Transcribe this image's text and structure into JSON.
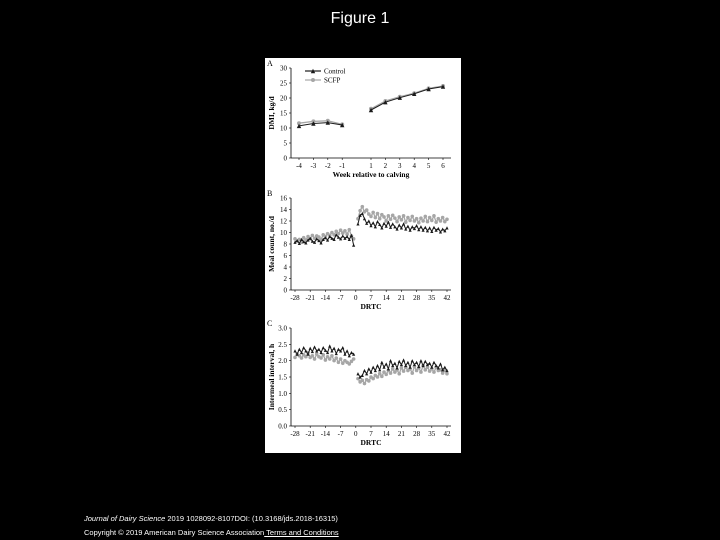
{
  "slide": {
    "title": "Figure 1",
    "citation_journal": "Journal of Dairy Science",
    "citation_rest": " 2019 1028092-8107DOI: (10.3168/jds.2018-16315)",
    "copyright_text": "Copyright © 2019 American Dairy Science Association",
    "copyright_link": " Terms and Conditions"
  },
  "colors": {
    "control": "#1a1a1a",
    "scfp": "#a6a6a6",
    "background": "#000000",
    "panel": "#ffffff"
  },
  "chart_data": [
    {
      "type": "line",
      "panel_letter": "A",
      "xlabel": "Week relative to calving",
      "ylabel": "DMI, kg/d",
      "ylim": [
        0,
        30
      ],
      "yticks": [
        0,
        5,
        10,
        15,
        20,
        25,
        30
      ],
      "xticks": [
        -4,
        -3,
        -2,
        -1,
        1,
        2,
        3,
        4,
        5,
        6
      ],
      "legend": [
        "Control",
        "SCFP"
      ],
      "legend_position": "top-right",
      "segments": [
        {
          "x": [
            -4,
            -3,
            -2,
            -1
          ],
          "series": [
            {
              "name": "Control",
              "values": [
                10.7,
                11.5,
                11.8,
                11.0
              ]
            },
            {
              "name": "SCFP",
              "values": [
                11.6,
                12.2,
                12.4,
                11.2
              ]
            }
          ]
        },
        {
          "x": [
            1,
            2,
            3,
            4,
            5,
            6
          ],
          "series": [
            {
              "name": "Control",
              "values": [
                16.0,
                18.6,
                20.1,
                21.4,
                23.0,
                23.8
              ]
            },
            {
              "name": "SCFP",
              "values": [
                16.4,
                19.0,
                20.4,
                21.6,
                23.2,
                24.0
              ]
            }
          ]
        }
      ]
    },
    {
      "type": "line",
      "panel_letter": "B",
      "xlabel": "DRTC",
      "ylabel": "Meal count, no./d",
      "ylim": [
        0,
        16
      ],
      "yticks": [
        0,
        2,
        4,
        6,
        8,
        10,
        12,
        14,
        16
      ],
      "xticks": [
        -28,
        -21,
        -14,
        -7,
        0,
        7,
        14,
        21,
        28,
        35,
        42
      ],
      "segments": [
        {
          "x": [
            -28,
            -27,
            -26,
            -25,
            -24,
            -23,
            -22,
            -21,
            -20,
            -19,
            -18,
            -17,
            -16,
            -15,
            -14,
            -13,
            -12,
            -11,
            -10,
            -9,
            -8,
            -7,
            -6,
            -5,
            -4,
            -3,
            -2,
            -1
          ],
          "series": [
            {
              "name": "Control",
              "values": [
                8.3,
                8.6,
                8.1,
                8.8,
                8.4,
                8.2,
                8.7,
                9.0,
                8.5,
                8.3,
                8.9,
                8.6,
                8.2,
                8.8,
                9.1,
                8.7,
                9.3,
                9.0,
                8.8,
                9.6,
                9.2,
                8.9,
                9.4,
                9.0,
                9.3,
                8.8,
                9.5,
                7.8
              ]
            },
            {
              "name": "SCFP",
              "values": [
                8.9,
                8.5,
                8.8,
                8.3,
                9.1,
                8.7,
                9.3,
                8.9,
                9.5,
                9.0,
                9.4,
                9.2,
                8.8,
                9.6,
                9.3,
                9.8,
                9.5,
                10.0,
                9.6,
                10.2,
                9.8,
                10.4,
                9.9,
                10.3,
                9.7,
                10.5,
                9.4,
                8.9
              ]
            }
          ]
        },
        {
          "x": [
            1,
            2,
            3,
            4,
            5,
            6,
            7,
            8,
            9,
            10,
            11,
            12,
            13,
            14,
            15,
            16,
            17,
            18,
            19,
            20,
            21,
            22,
            23,
            24,
            25,
            26,
            27,
            28,
            29,
            30,
            31,
            32,
            33,
            34,
            35,
            36,
            37,
            38,
            39,
            40,
            41,
            42
          ],
          "series": [
            {
              "name": "Control",
              "values": [
                11.5,
                13.0,
                13.3,
                12.4,
                11.6,
                12.0,
                11.2,
                11.7,
                11.0,
                11.9,
                11.4,
                10.8,
                11.6,
                11.1,
                11.8,
                10.9,
                11.5,
                11.0,
                10.6,
                11.3,
                10.8,
                11.5,
                10.6,
                11.1,
                10.4,
                11.0,
                10.7,
                11.2,
                10.5,
                11.0,
                10.4,
                10.9,
                10.3,
                10.8,
                10.2,
                10.9,
                10.4,
                10.7,
                10.1,
                10.6,
                10.3,
                10.8
              ]
            },
            {
              "name": "SCFP",
              "values": [
                12.4,
                13.8,
                14.5,
                13.6,
                13.9,
                13.2,
                12.8,
                13.5,
                12.6,
                13.3,
                12.4,
                13.1,
                12.7,
                12.0,
                12.9,
                12.3,
                13.0,
                12.5,
                11.9,
                12.7,
                12.2,
                12.9,
                11.8,
                12.6,
                12.1,
                12.8,
                12.0,
                12.4,
                11.7,
                12.5,
                12.0,
                12.8,
                11.9,
                12.6,
                12.1,
                12.9,
                11.8,
                12.4,
                12.0,
                12.6,
                11.9,
                12.3
              ]
            }
          ]
        }
      ]
    },
    {
      "type": "line",
      "panel_letter": "C",
      "xlabel": "DRTC",
      "ylabel": "Intermeal interval, h",
      "ylim": [
        0,
        3
      ],
      "yticks": [
        "0.0",
        "0.5",
        "1.0",
        "1.5",
        "2.0",
        "2.5",
        "3.0"
      ],
      "xticks": [
        -28,
        -21,
        -14,
        -7,
        0,
        7,
        14,
        21,
        28,
        35,
        42
      ],
      "segments": [
        {
          "x": [
            -28,
            -27,
            -26,
            -25,
            -24,
            -23,
            -22,
            -21,
            -20,
            -19,
            -18,
            -17,
            -16,
            -15,
            -14,
            -13,
            -12,
            -11,
            -10,
            -9,
            -8,
            -7,
            -6,
            -5,
            -4,
            -3,
            -2,
            -1
          ],
          "series": [
            {
              "name": "Control",
              "values": [
                2.3,
                2.2,
                2.35,
                2.25,
                2.4,
                2.3,
                2.2,
                2.38,
                2.28,
                2.42,
                2.3,
                2.35,
                2.25,
                2.4,
                2.32,
                2.25,
                2.45,
                2.3,
                2.38,
                2.22,
                2.35,
                2.3,
                2.4,
                2.2,
                2.3,
                2.15,
                2.25,
                2.2
              ]
            },
            {
              "name": "SCFP",
              "values": [
                2.1,
                2.2,
                2.15,
                2.08,
                2.18,
                2.12,
                2.25,
                2.1,
                2.15,
                2.05,
                2.2,
                2.12,
                2.08,
                2.18,
                2.02,
                2.12,
                2.05,
                2.15,
                2.0,
                2.08,
                1.95,
                2.05,
                1.92,
                2.0,
                1.95,
                1.9,
                1.98,
                2.05
              ]
            }
          ]
        },
        {
          "x": [
            1,
            2,
            3,
            4,
            5,
            6,
            7,
            8,
            9,
            10,
            11,
            12,
            13,
            14,
            15,
            16,
            17,
            18,
            19,
            20,
            21,
            22,
            23,
            24,
            25,
            26,
            27,
            28,
            29,
            30,
            31,
            32,
            33,
            34,
            35,
            36,
            37,
            38,
            39,
            40,
            41,
            42
          ],
          "series": [
            {
              "name": "Control",
              "values": [
                1.6,
                1.5,
                1.55,
                1.7,
                1.6,
                1.75,
                1.65,
                1.8,
                1.7,
                1.85,
                1.72,
                1.95,
                1.8,
                1.9,
                1.75,
                2.0,
                1.85,
                1.92,
                1.78,
                1.98,
                1.88,
                2.02,
                1.85,
                1.95,
                1.8,
                2.0,
                1.88,
                1.95,
                1.82,
                2.0,
                1.85,
                1.98,
                1.88,
                1.92,
                1.8,
                1.95,
                1.85,
                1.78,
                1.9,
                1.72,
                1.8,
                1.7
              ]
            },
            {
              "name": "SCFP",
              "values": [
                1.45,
                1.35,
                1.4,
                1.3,
                1.42,
                1.38,
                1.5,
                1.45,
                1.55,
                1.5,
                1.6,
                1.52,
                1.65,
                1.58,
                1.7,
                1.62,
                1.75,
                1.65,
                1.72,
                1.6,
                1.78,
                1.68,
                1.8,
                1.7,
                1.75,
                1.62,
                1.82,
                1.7,
                1.78,
                1.65,
                1.85,
                1.72,
                1.8,
                1.68,
                1.75,
                1.65,
                1.8,
                1.7,
                1.72,
                1.62,
                1.7,
                1.6
              ]
            }
          ]
        }
      ]
    }
  ]
}
